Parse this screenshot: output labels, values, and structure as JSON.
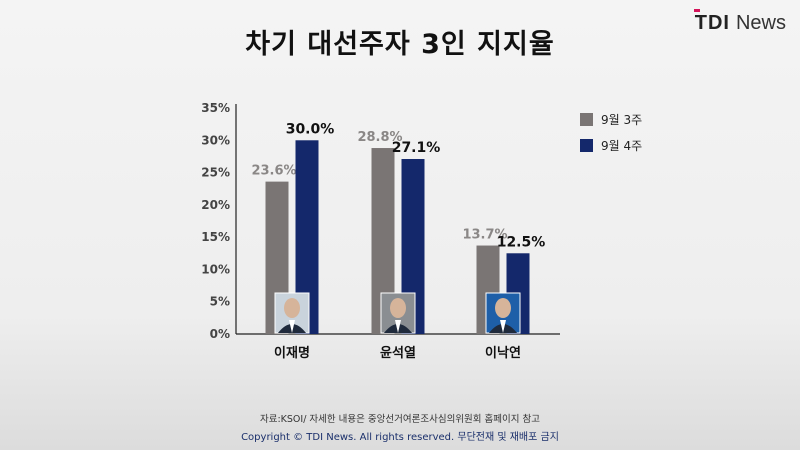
{
  "title": "차기 대선주자 3인 지지율",
  "logo": {
    "mark": "TDI",
    "rest": "News"
  },
  "footer": {
    "note": "자료:KSOI/ 자세한 내용은 중앙선거여론조사심의위원회 홈페이지 참고",
    "copyright": "Copyright © TDI News. All rights reserved. 무단전재 및 재배포 금지"
  },
  "chart_data": {
    "type": "bar",
    "categories": [
      "이재명",
      "윤석열",
      "이낙연"
    ],
    "series": [
      {
        "name": "9월 3주",
        "values": [
          23.6,
          28.8,
          13.7
        ],
        "color": "#7a7574",
        "label_color": "#8a8786"
      },
      {
        "name": "9월 4주",
        "values": [
          30.0,
          27.1,
          12.5
        ],
        "color": "#14286b",
        "label_color": "#111111"
      }
    ],
    "value_labels": [
      [
        "23.6%",
        "28.8%",
        "13.7%"
      ],
      [
        "30.0%",
        "27.1%",
        "12.5%"
      ]
    ],
    "y_ticks": [
      "0%",
      "5%",
      "10%",
      "15%",
      "20%",
      "25%",
      "30%",
      "35%"
    ],
    "ylim": [
      0,
      35
    ],
    "legend_position": "top-right",
    "grid": false
  }
}
